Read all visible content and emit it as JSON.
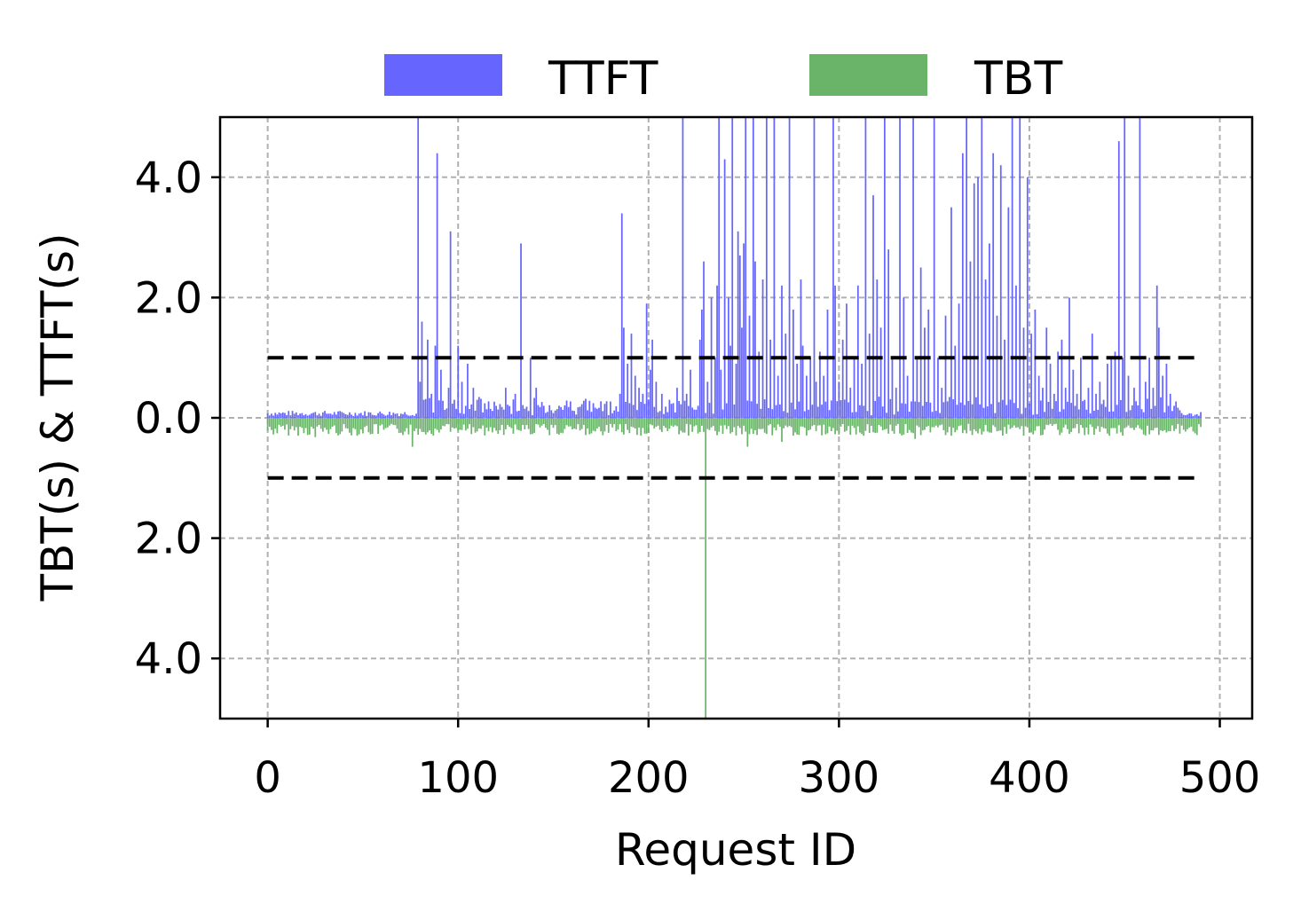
{
  "chart_data": {
    "type": "bar",
    "title": "",
    "xlabel": "Request ID",
    "ylabel": "TBT(s) & TTFT(s)",
    "xlim": [
      -25,
      517
    ],
    "ylim": [
      -5,
      5
    ],
    "x_ticks": [
      0,
      100,
      200,
      300,
      400,
      500
    ],
    "x_tick_labels": [
      "0",
      "100",
      "200",
      "300",
      "400",
      "500"
    ],
    "y_ticks": [
      4,
      2,
      0,
      -2,
      -4
    ],
    "y_tick_labels": [
      "4.0",
      "2.0",
      "0.0",
      "2.0",
      "4.0"
    ],
    "grid": true,
    "legend_position": "top-center",
    "threshold_lines": [
      1.0,
      -1.0
    ],
    "baseline_tbt_magnitude": 0.15,
    "series": [
      {
        "name": "TTFT",
        "direction": "up",
        "color": "#6666ff",
        "baseline_range": [
          0.03,
          0.12
        ],
        "spikes": [
          [
            79,
            5.0
          ],
          [
            80,
            0.6
          ],
          [
            81,
            1.6
          ],
          [
            82,
            0.3
          ],
          [
            84,
            1.3
          ],
          [
            86,
            0.4
          ],
          [
            88,
            1.2
          ],
          [
            89,
            4.4
          ],
          [
            91,
            0.8
          ],
          [
            95,
            0.5
          ],
          [
            96,
            3.1
          ],
          [
            98,
            0.3
          ],
          [
            100,
            1.2
          ],
          [
            102,
            0.6
          ],
          [
            104,
            0.2
          ],
          [
            105,
            0.9
          ],
          [
            108,
            0.5
          ],
          [
            110,
            0.3
          ],
          [
            117,
            0.15
          ],
          [
            125,
            0.5
          ],
          [
            130,
            0.4
          ],
          [
            133,
            2.9
          ],
          [
            138,
            1.0
          ],
          [
            141,
            0.5
          ],
          [
            145,
            0.2
          ],
          [
            170,
            0.1
          ],
          [
            185,
            0.4
          ],
          [
            186,
            3.4
          ],
          [
            187,
            1.5
          ],
          [
            189,
            0.9
          ],
          [
            191,
            1.4
          ],
          [
            193,
            0.7
          ],
          [
            195,
            0.5
          ],
          [
            197,
            0.4
          ],
          [
            199,
            1.9
          ],
          [
            201,
            0.8
          ],
          [
            202,
            1.3
          ],
          [
            204,
            0.6
          ],
          [
            207,
            0.4
          ],
          [
            211,
            0.3
          ],
          [
            215,
            0.5
          ],
          [
            218,
            5.0
          ],
          [
            220,
            0.4
          ],
          [
            222,
            0.8
          ],
          [
            226,
            0.2
          ],
          [
            227,
            1.3
          ],
          [
            228,
            1.8
          ],
          [
            229,
            2.6
          ],
          [
            231,
            0.6
          ],
          [
            233,
            2.0
          ],
          [
            235,
            1.0
          ],
          [
            236,
            2.2
          ],
          [
            237,
            5.0
          ],
          [
            238,
            0.8
          ],
          [
            240,
            4.3
          ],
          [
            242,
            2.0
          ],
          [
            243,
            1.2
          ],
          [
            244,
            5.0
          ],
          [
            246,
            0.9
          ],
          [
            247,
            3.1
          ],
          [
            248,
            2.7
          ],
          [
            249,
            1.5
          ],
          [
            250,
            2.9
          ],
          [
            251,
            5.0
          ],
          [
            253,
            1.7
          ],
          [
            255,
            5.0
          ],
          [
            256,
            2.6
          ],
          [
            258,
            1.1
          ],
          [
            260,
            2.3
          ],
          [
            262,
            5.0
          ],
          [
            264,
            1.3
          ],
          [
            266,
            5.0
          ],
          [
            268,
            0.7
          ],
          [
            270,
            2.2
          ],
          [
            272,
            1.4
          ],
          [
            274,
            5.0
          ],
          [
            276,
            1.8
          ],
          [
            278,
            0.9
          ],
          [
            280,
            2.3
          ],
          [
            281,
            1.2
          ],
          [
            283,
            0.7
          ],
          [
            285,
            1.0
          ],
          [
            287,
            5.0
          ],
          [
            288,
            0.6
          ],
          [
            290,
            1.1
          ],
          [
            292,
            0.7
          ],
          [
            294,
            1.8
          ],
          [
            297,
            5.0
          ],
          [
            298,
            2.2
          ],
          [
            300,
            0.6
          ],
          [
            302,
            1.3
          ],
          [
            304,
            1.9
          ],
          [
            306,
            0.5
          ],
          [
            308,
            1.0
          ],
          [
            310,
            2.2
          ],
          [
            312,
            0.9
          ],
          [
            314,
            5.0
          ],
          [
            316,
            1.4
          ],
          [
            318,
            3.7
          ],
          [
            320,
            2.3
          ],
          [
            322,
            1.5
          ],
          [
            324,
            5.0
          ],
          [
            326,
            2.8
          ],
          [
            328,
            1.0
          ],
          [
            330,
            0.5
          ],
          [
            332,
            5.0
          ],
          [
            334,
            2.0
          ],
          [
            336,
            0.7
          ],
          [
            339,
            5.0
          ],
          [
            341,
            1.0
          ],
          [
            343,
            2.5
          ],
          [
            345,
            1.5
          ],
          [
            347,
            1.8
          ],
          [
            350,
            5.0
          ],
          [
            352,
            1.0
          ],
          [
            354,
            0.5
          ],
          [
            356,
            1.7
          ],
          [
            359,
            3.5
          ],
          [
            361,
            1.2
          ],
          [
            363,
            1.9
          ],
          [
            365,
            4.4
          ],
          [
            367,
            5.0
          ],
          [
            369,
            2.6
          ],
          [
            371,
            3.9
          ],
          [
            373,
            4.0
          ],
          [
            375,
            5.0
          ],
          [
            377,
            2.3
          ],
          [
            379,
            2.9
          ],
          [
            381,
            4.4
          ],
          [
            383,
            1.7
          ],
          [
            385,
            4.2
          ],
          [
            387,
            1.3
          ],
          [
            389,
            3.5
          ],
          [
            391,
            5.0
          ],
          [
            393,
            2.2
          ],
          [
            395,
            5.0
          ],
          [
            397,
            1.5
          ],
          [
            399,
            4.0
          ],
          [
            401,
            1.4
          ],
          [
            403,
            1.8
          ],
          [
            405,
            0.7
          ],
          [
            407,
            0.5
          ],
          [
            409,
            1.5
          ],
          [
            411,
            0.9
          ],
          [
            413,
            0.4
          ],
          [
            415,
            1.1
          ],
          [
            417,
            1.3
          ],
          [
            419,
            0.5
          ],
          [
            421,
            2.0
          ],
          [
            423,
            0.8
          ],
          [
            425,
            0.4
          ],
          [
            427,
            1.0
          ],
          [
            429,
            0.3
          ],
          [
            431,
            0.5
          ],
          [
            433,
            1.4
          ],
          [
            435,
            0.4
          ],
          [
            437,
            0.6
          ],
          [
            439,
            0.3
          ],
          [
            441,
            0.9
          ],
          [
            443,
            1.0
          ],
          [
            445,
            1.1
          ],
          [
            447,
            4.6
          ],
          [
            449,
            1.0
          ],
          [
            450,
            5.0
          ],
          [
            452,
            0.7
          ],
          [
            455,
            0.5
          ],
          [
            458,
            5.0
          ],
          [
            461,
            0.6
          ],
          [
            463,
            1.0
          ],
          [
            465,
            0.5
          ],
          [
            467,
            2.2
          ],
          [
            468,
            1.5
          ],
          [
            470,
            0.7
          ],
          [
            472,
            0.9
          ],
          [
            474,
            0.4
          ],
          [
            476,
            0.2
          ]
        ]
      },
      {
        "name": "TBT",
        "direction": "down",
        "color": "#6ab46a",
        "baseline_range": [
          0.1,
          0.3
        ],
        "spikes": [
          [
            25,
            0.32
          ],
          [
            76,
            0.48
          ],
          [
            230,
            5.0
          ],
          [
            252,
            0.48
          ],
          [
            270,
            0.4
          ],
          [
            340,
            0.35
          ]
        ]
      }
    ]
  }
}
